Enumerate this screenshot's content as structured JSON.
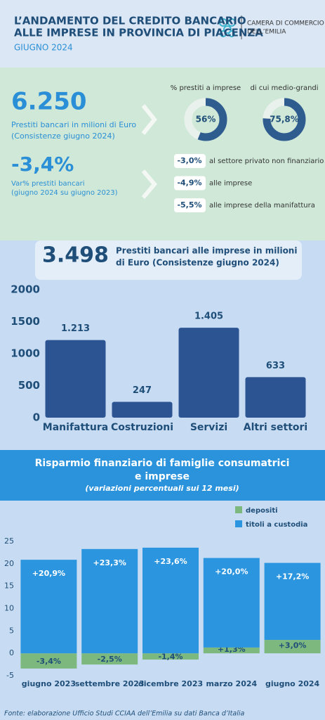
{
  "header": {
    "title": [
      "L’ANDAMENTO DEL CREDITO BANCARIO",
      "ALLE IMPRESE IN PROVINCIA DI PIACENZA"
    ],
    "subtitle": "GIUGNO 2024",
    "logo": [
      "CAMERA DI COMMERCIO",
      "DELL’EMILIA"
    ]
  },
  "summary": {
    "stock": {
      "value": "6.250",
      "label": [
        "Prestiti bancari in milioni di Euro",
        "(Consistenze giugno 2024)"
      ]
    },
    "shares": [
      {
        "label": "% prestiti a imprese",
        "value": 56,
        "value_label": "56%"
      },
      {
        "label": "di cui medio-grandi",
        "value": 75.8,
        "value_label": "75,8%"
      }
    ],
    "change": {
      "value": "-3,4%",
      "label": [
        "Var% prestiti bancari",
        "(giugno 2024 su giugno 2023)"
      ]
    },
    "breakdown": [
      {
        "value": "-3,0%",
        "label": "al settore privato non finanziario"
      },
      {
        "value": "-4,9%",
        "label": "alle imprese"
      },
      {
        "value": "-5,5%",
        "label": "alle imprese della manifattura"
      }
    ]
  },
  "chart_data": [
    {
      "type": "bar",
      "highlight": "3.498",
      "title": [
        "Prestiti bancari alle imprese in milioni",
        "di Euro (Consistenze giugno 2024)"
      ],
      "categories": [
        "Manifattura",
        "Costruzioni",
        "Servizi",
        "Altri settori"
      ],
      "values": [
        1213,
        247,
        1405,
        633
      ],
      "value_labels": [
        "1.213",
        "247",
        "1.405",
        "633"
      ],
      "color": "#2c5492",
      "ylim": [
        0,
        2000
      ],
      "yticks": [
        0,
        500,
        1000,
        1500,
        2000
      ],
      "grid": false
    },
    {
      "type": "stacked_bar",
      "title": [
        "Risparmio finanziario di famiglie consumatrici",
        "e imprese"
      ],
      "subtitle": "(variazioni percentuali sui 12 mesi)",
      "categories": [
        "giugno 2023",
        "settembre 2023",
        "dicembre 2023",
        "marzo 2024",
        "giugno 2024"
      ],
      "series": [
        {
          "name": "depositi",
          "color": "#7db87f",
          "values": [
            -3.4,
            -2.5,
            -1.4,
            1.3,
            3.0
          ],
          "value_labels": [
            "-3,4%",
            "-2,5%",
            "-1,4%",
            "+1,3%",
            "+3,0%"
          ]
        },
        {
          "name": "titoli a custodia",
          "color": "#2b95df",
          "values": [
            20.9,
            23.3,
            23.6,
            20.0,
            17.2
          ],
          "value_labels": [
            "+20,9%",
            "+23,3%",
            "+23,6%",
            "+20,0%",
            "+17,2%"
          ]
        }
      ],
      "ylim": [
        -5,
        25
      ],
      "yticks": [
        -5,
        0,
        5,
        10,
        15,
        20,
        25
      ],
      "grid": false,
      "legend": "top-right"
    }
  ],
  "footer": "Fonte: elaborazione Ufficio Studi CCIAA dell’Emilia su dati Banca d’Italia"
}
